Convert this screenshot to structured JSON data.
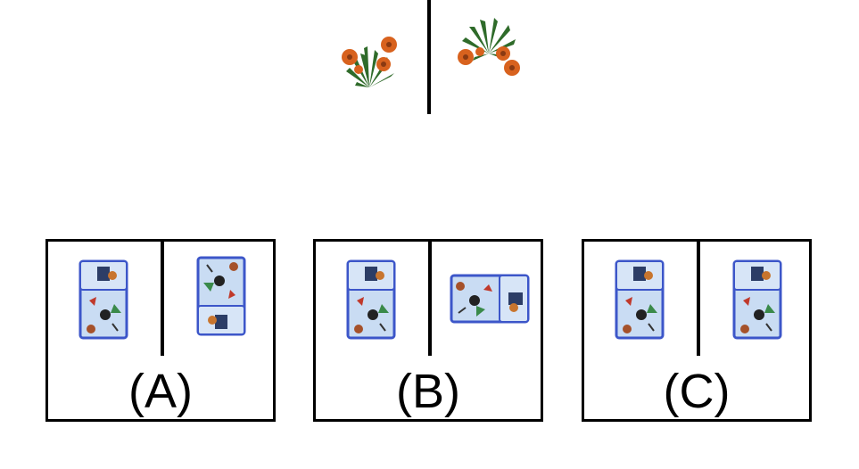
{
  "prompt": {
    "left_item": "flower-cluster-icon",
    "right_item": "flower-cluster-icon"
  },
  "options": [
    {
      "label": "(A)",
      "left": "bag-upright-icon",
      "right": "bag-upside-down-icon"
    },
    {
      "label": "(B)",
      "left": "bag-upright-icon",
      "right": "bag-sideways-icon"
    },
    {
      "label": "(C)",
      "left": "bag-upright-icon",
      "right": "bag-upright-icon"
    }
  ],
  "colors": {
    "bag_body": "#c9dcf3",
    "bag_edge": "#3c56c9",
    "leaf": "#2f6b2a",
    "petal": "#d8621e"
  }
}
